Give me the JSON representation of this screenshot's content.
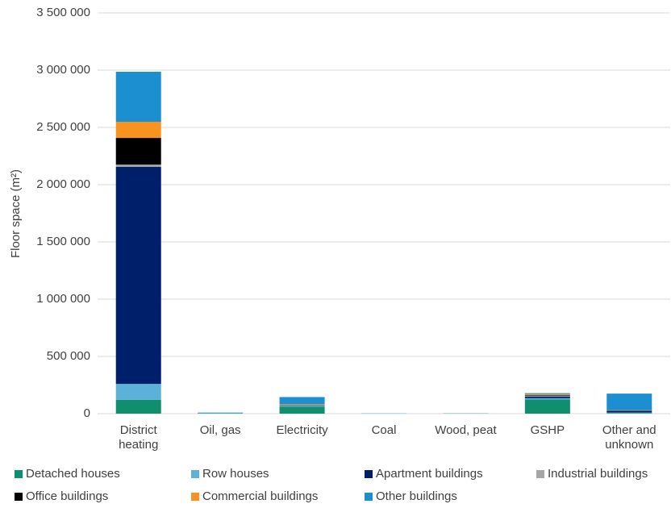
{
  "chart_data": {
    "type": "bar",
    "stacked": true,
    "y_label": "Floor space (m²)",
    "categories": [
      "District heating",
      "Oil, gas",
      "Electricity",
      "Coal",
      "Wood, peat",
      "GSHP",
      "Other and unknown"
    ],
    "series": [
      {
        "name": "Detached houses",
        "color": "#0f8f6e",
        "values": [
          120000,
          3000,
          60000,
          0,
          2000,
          125000,
          5000
        ]
      },
      {
        "name": "Row houses",
        "color": "#5bb1d8",
        "values": [
          140000,
          5000,
          8000,
          3000,
          1000,
          10000,
          5000
        ]
      },
      {
        "name": "Apartment buildings",
        "color": "#001f6b",
        "values": [
          1895000,
          0,
          2000,
          0,
          0,
          15000,
          15000
        ]
      },
      {
        "name": "Industrial buildings",
        "color": "#a6a6a6",
        "values": [
          20000,
          0,
          5000,
          0,
          0,
          8000,
          3000
        ]
      },
      {
        "name": "Office buildings",
        "color": "#000000",
        "values": [
          233000,
          0,
          2000,
          0,
          0,
          5000,
          2000
        ]
      },
      {
        "name": "Commercial buildings",
        "color": "#f7931e",
        "values": [
          141000,
          0,
          5000,
          0,
          0,
          8000,
          2000
        ]
      },
      {
        "name": "Other buildings",
        "color": "#1b8fcf",
        "values": [
          437000,
          2000,
          63000,
          0,
          0,
          8000,
          143000
        ]
      }
    ],
    "ylim": [
      0,
      3500000
    ],
    "yticks": [
      0,
      {
        "value": 500000,
        "label": "500 000"
      },
      {
        "value": 1000000,
        "label": "1 000 000"
      },
      {
        "value": 1500000,
        "label": "1 500 000"
      },
      {
        "value": 2000000,
        "label": "2 000 000"
      },
      {
        "value": 2500000,
        "label": "2 500 000"
      },
      {
        "value": 3000000,
        "label": "3 000 000"
      },
      {
        "value": 3500000,
        "label": "3 500 000"
      }
    ],
    "grid": true,
    "legend": "bottom"
  }
}
